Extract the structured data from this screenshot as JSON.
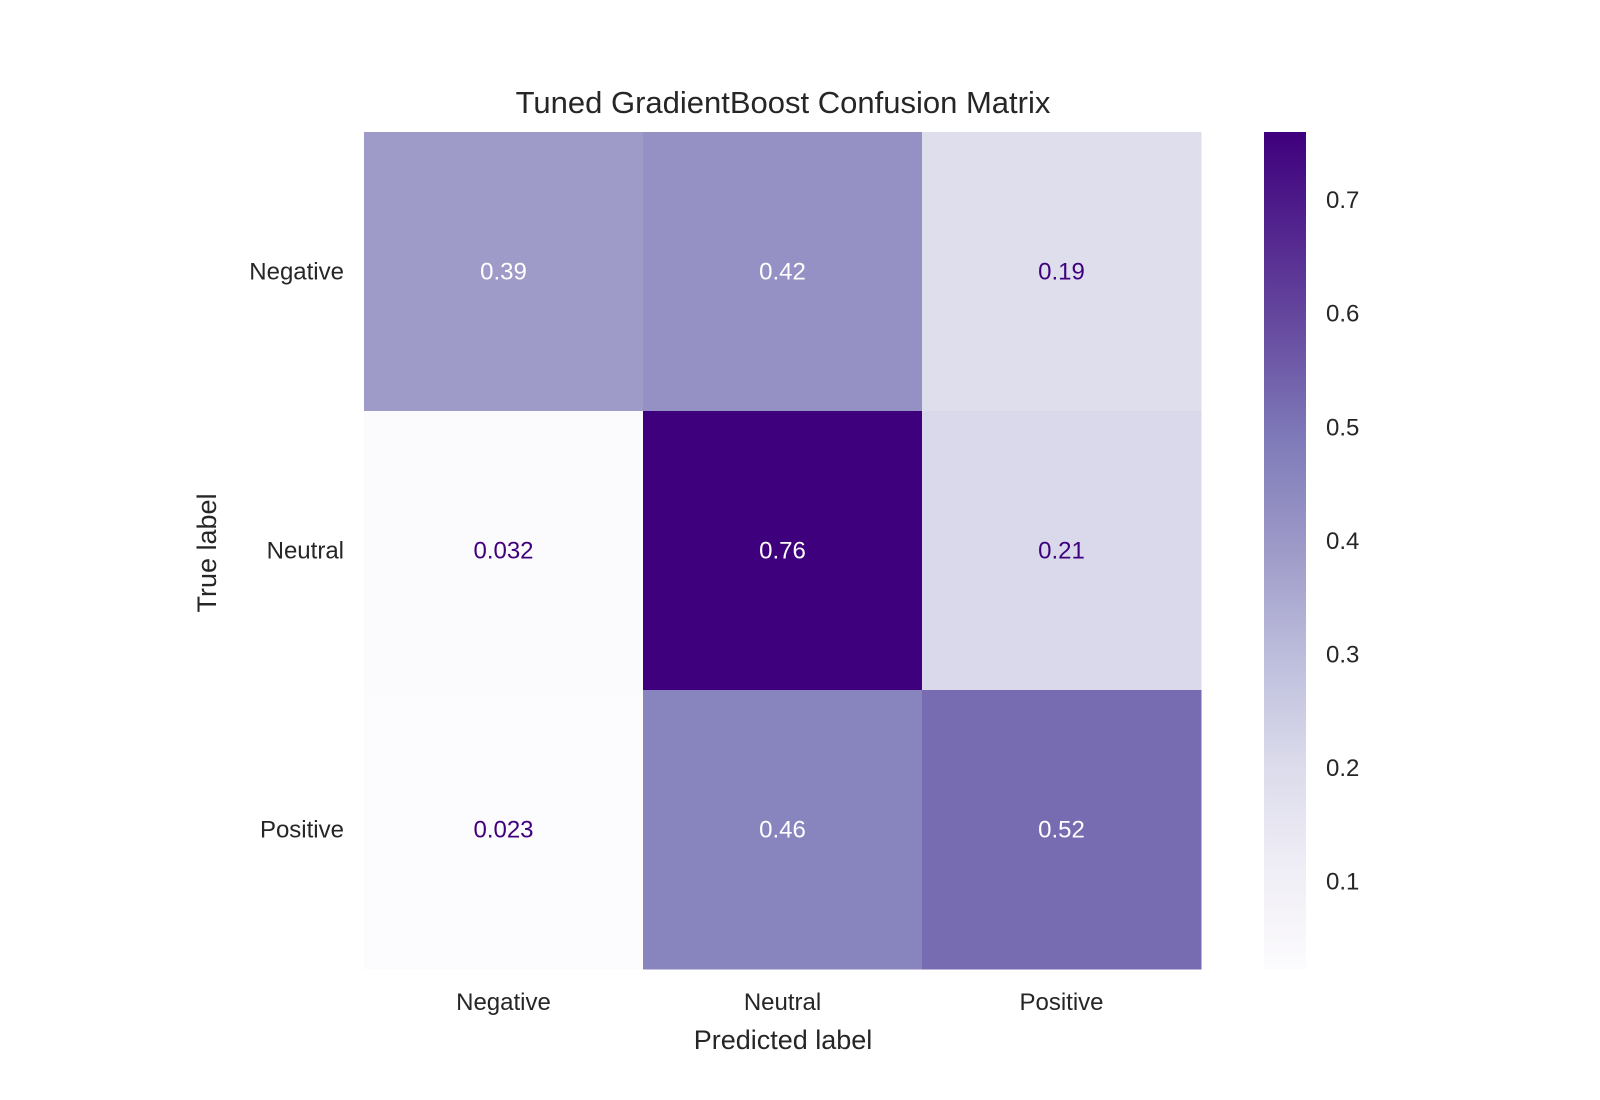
{
  "chart_data": {
    "type": "heatmap",
    "title": "Tuned GradientBoost Confusion Matrix",
    "xlabel": "Predicted label",
    "ylabel": "True label",
    "x_categories": [
      "Negative",
      "Neutral",
      "Positive"
    ],
    "y_categories": [
      "Negative",
      "Neutral",
      "Positive"
    ],
    "values": [
      [
        0.39,
        0.42,
        0.19
      ],
      [
        0.032,
        0.76,
        0.21
      ],
      [
        0.023,
        0.46,
        0.52
      ]
    ],
    "value_labels": [
      [
        "0.39",
        "0.42",
        "0.19"
      ],
      [
        "0.032",
        "0.76",
        "0.21"
      ],
      [
        "0.023",
        "0.46",
        "0.52"
      ]
    ],
    "colormap": "Purples",
    "colorbar": {
      "range": [
        0.023,
        0.76
      ],
      "ticks": [
        0.1,
        0.2,
        0.3,
        0.4,
        0.5,
        0.6,
        0.7
      ],
      "tick_labels": [
        "0.1",
        "0.2",
        "0.3",
        "0.4",
        "0.5",
        "0.6",
        "0.7"
      ]
    },
    "colors": {
      "dark_text": "#3f007d",
      "light_text": "#ffffff",
      "axis_text": "#262626"
    },
    "grid": false
  }
}
